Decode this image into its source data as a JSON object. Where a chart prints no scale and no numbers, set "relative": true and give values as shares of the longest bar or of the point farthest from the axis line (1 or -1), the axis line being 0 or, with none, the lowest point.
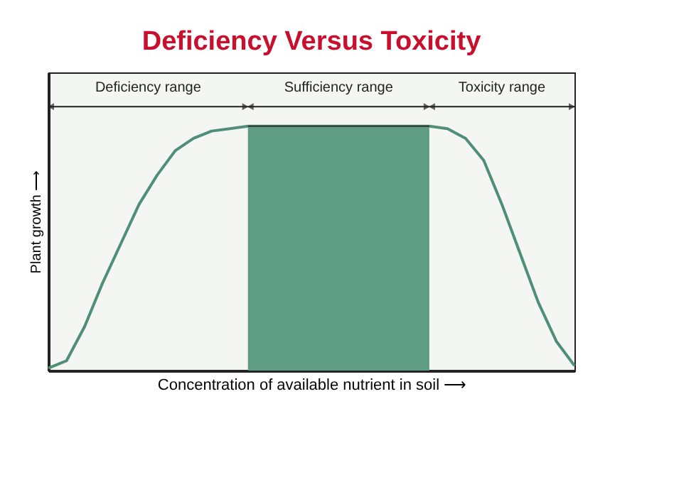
{
  "chart_data": {
    "type": "line",
    "title": "Deficiency Versus Toxicity",
    "xlabel": "Concentration of available nutrient in soil ⟶",
    "ylabel": "Plant growth ⟶",
    "relative": true,
    "categories": [
      null,
      null,
      null,
      null,
      null,
      null,
      null,
      null,
      null,
      null,
      null,
      null,
      null,
      null,
      null,
      null,
      null,
      null,
      null,
      null,
      null,
      null,
      null,
      null,
      null,
      null,
      null,
      null,
      null,
      null
    ],
    "series": [
      {
        "color": "#4f8f76",
        "values": [
          0.01,
          0.04,
          0.18,
          0.36,
          0.52,
          0.68,
          0.8,
          0.9,
          0.95,
          0.98,
          0.99,
          1,
          1,
          1,
          1,
          1,
          1,
          1,
          1,
          1,
          1,
          1,
          0.99,
          0.95,
          0.86,
          0.68,
          0.48,
          0.28,
          0.12,
          0.02
        ]
      },
      {
        "type": "area",
        "color": "#5f9c85",
        "values": [
          null,
          null,
          null,
          null,
          null,
          null,
          null,
          null,
          null,
          null,
          null,
          1,
          1,
          1,
          1,
          1,
          1,
          1,
          1,
          1,
          1,
          1,
          null,
          null,
          null,
          null,
          null,
          null,
          null,
          null
        ]
      }
    ],
    "annotations": [
      "Deficiency range",
      "Sufficiency range",
      "Toxicity range"
    ],
    "grid": false,
    "marker": "none",
    "line_style": "solid"
  }
}
